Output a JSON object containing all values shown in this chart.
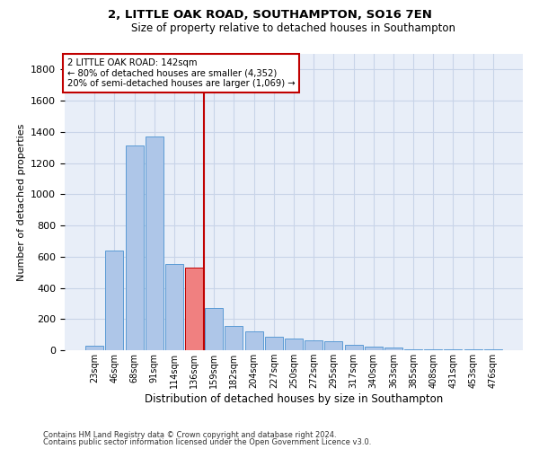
{
  "title_line1": "2, LITTLE OAK ROAD, SOUTHAMPTON, SO16 7EN",
  "title_line2": "Size of property relative to detached houses in Southampton",
  "xlabel": "Distribution of detached houses by size in Southampton",
  "ylabel": "Number of detached properties",
  "footnote1": "Contains HM Land Registry data © Crown copyright and database right 2024.",
  "footnote2": "Contains public sector information licensed under the Open Government Licence v3.0.",
  "annotation_title": "2 LITTLE OAK ROAD: 142sqm",
  "annotation_line2": "← 80% of detached houses are smaller (4,352)",
  "annotation_line3": "20% of semi-detached houses are larger (1,069) →",
  "bar_color": "#aec6e8",
  "bar_edge_color": "#5b9bd5",
  "highlight_bar_color": "#f08080",
  "highlight_bar_edge_color": "#c00000",
  "vline_color": "#c00000",
  "annotation_box_color": "#c00000",
  "categories": [
    "23sqm",
    "46sqm",
    "68sqm",
    "91sqm",
    "114sqm",
    "136sqm",
    "159sqm",
    "182sqm",
    "204sqm",
    "227sqm",
    "250sqm",
    "272sqm",
    "295sqm",
    "317sqm",
    "340sqm",
    "363sqm",
    "385sqm",
    "408sqm",
    "431sqm",
    "453sqm",
    "476sqm"
  ],
  "values": [
    30,
    640,
    1310,
    1370,
    550,
    530,
    270,
    155,
    120,
    85,
    75,
    65,
    55,
    35,
    25,
    15,
    8,
    5,
    4,
    3,
    3
  ],
  "highlight_index": 5,
  "vline_x": 5.5,
  "ylim": [
    0,
    1900
  ],
  "yticks": [
    0,
    200,
    400,
    600,
    800,
    1000,
    1200,
    1400,
    1600,
    1800
  ],
  "grid_color": "#c8d4e8",
  "bg_color": "#e8eef8"
}
